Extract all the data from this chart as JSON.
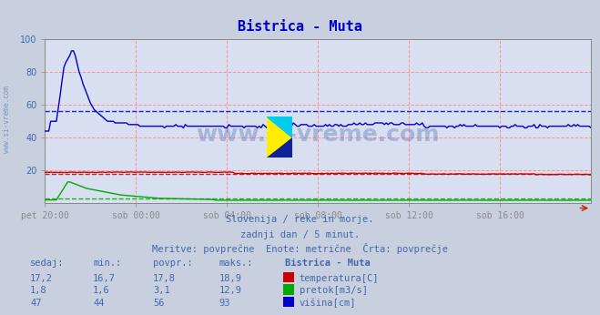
{
  "title": "Bistrica - Muta",
  "bg_color": "#c8d0e0",
  "plot_bg_color": "#d8dff0",
  "grid_color": "#ff8888",
  "watermark": "www.si-vreme.com",
  "subtitle1": "Slovenija / reke in morje.",
  "subtitle2": "zadnji dan / 5 minut.",
  "subtitle3": "Meritve: povprečne  Enote: metrične  Črta: povprečje",
  "text_color": "#4466aa",
  "x_labels": [
    "pet 20:00",
    "sob 00:00",
    "sob 04:00",
    "sob 08:00",
    "sob 12:00",
    "sob 16:00"
  ],
  "x_ticks_pos": [
    0,
    48,
    96,
    144,
    192,
    240
  ],
  "total_points": 289,
  "temp_color": "#cc0000",
  "flow_color": "#00aa00",
  "height_color": "#0000cc",
  "temp_avg": 17.8,
  "flow_avg": 3.1,
  "height_avg": 56,
  "temp_min": 16.7,
  "temp_max": 18.9,
  "flow_min": 1.6,
  "flow_max": 12.9,
  "height_min": 44,
  "height_max": 93,
  "temp_current": 17.2,
  "flow_current": 1.8,
  "height_current": 47,
  "table_header": [
    "sedaj:",
    "min.:",
    "povpr.:",
    "maks.:",
    "Bistrica – Muta"
  ],
  "legend_labels": [
    "temperatura[C]",
    "pretok[m3/s]",
    "višina[cm]"
  ],
  "ylim": [
    0,
    100
  ],
  "yticks": [
    20,
    40,
    60,
    80,
    100
  ]
}
